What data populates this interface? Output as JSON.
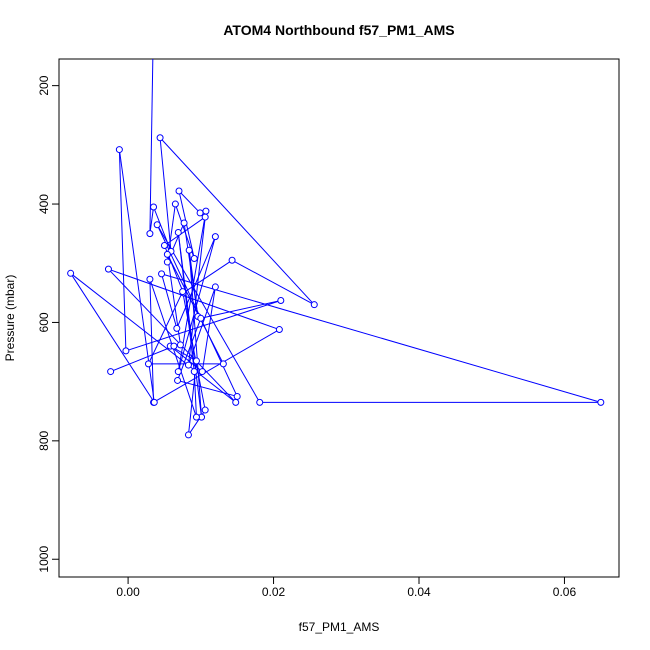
{
  "chart_data": {
    "type": "line",
    "title": "ATOM4 Northbound f57_PM1_AMS",
    "xlabel": "f57_PM1_AMS",
    "ylabel": "Pressure (mbar)",
    "xlim": [
      -0.0095,
      0.0675
    ],
    "ylim": [
      1030,
      155
    ],
    "y_reversed": true,
    "x_ticks": [
      0.0,
      0.02,
      0.04,
      0.06
    ],
    "x_tick_labels": [
      "0.00",
      "0.02",
      "0.04",
      "0.06"
    ],
    "y_ticks": [
      200,
      400,
      600,
      800,
      1000
    ],
    "y_tick_labels": [
      "200",
      "400",
      "600",
      "800",
      "1000"
    ],
    "series": [
      {
        "color": "#0000ff",
        "marker": "open-circle",
        "connect": "lines",
        "points": [
          {
            "x": 0.0034,
            "y": 155,
            "marker": false
          },
          {
            "x": 0.003,
            "y": 450
          },
          {
            "x": 0.0035,
            "y": 405
          },
          {
            "x": 0.0059,
            "y": 480
          },
          {
            "x": 0.0044,
            "y": 288
          },
          {
            "x": 0.0256,
            "y": 570
          },
          {
            "x": 0.0143,
            "y": 495
          },
          {
            "x": 0.0076,
            "y": 550
          },
          {
            "x": 0.005,
            "y": 470
          },
          {
            "x": 0.0106,
            "y": 422
          },
          {
            "x": 0.0099,
            "y": 415
          },
          {
            "x": 0.007,
            "y": 378
          },
          {
            "x": 0.0091,
            "y": 492
          },
          {
            "x": 0.0065,
            "y": 400
          },
          {
            "x": 0.0054,
            "y": 498
          },
          {
            "x": 0.0077,
            "y": 432
          },
          {
            "x": 0.0096,
            "y": 590
          },
          {
            "x": 0.0084,
            "y": 478
          },
          {
            "x": 0.0101,
            "y": 760
          },
          {
            "x": 0.0069,
            "y": 448
          },
          {
            "x": 0.0091,
            "y": 683
          },
          {
            "x": 0.0094,
            "y": 760
          },
          {
            "x": 0.003,
            "y": 527
          },
          {
            "x": 0.0035,
            "y": 735
          },
          {
            "x": 0.0208,
            "y": 612
          },
          {
            "x": -0.0027,
            "y": 510
          },
          {
            "x": 0.0148,
            "y": 735
          },
          {
            "x": -0.0079,
            "y": 517
          },
          {
            "x": 0.0036,
            "y": 735
          },
          {
            "x": -0.0012,
            "y": 308
          },
          {
            "x": -0.0003,
            "y": 648
          },
          {
            "x": 0.021,
            "y": 563
          },
          {
            "x": 0.01,
            "y": 593
          },
          {
            "x": 0.0068,
            "y": 698
          },
          {
            "x": 0.015,
            "y": 725
          },
          {
            "x": 0.004,
            "y": 435
          },
          {
            "x": 0.0181,
            "y": 735
          },
          {
            "x": 0.065,
            "y": 735
          },
          {
            "x": 0.0046,
            "y": 518
          },
          {
            "x": 0.0067,
            "y": 610
          },
          {
            "x": 0.012,
            "y": 455
          },
          {
            "x": 0.0069,
            "y": 683
          },
          {
            "x": 0.0107,
            "y": 412
          },
          {
            "x": 0.0083,
            "y": 672
          },
          {
            "x": 0.012,
            "y": 540
          },
          {
            "x": 0.0102,
            "y": 683
          },
          {
            "x": 0.0058,
            "y": 640
          },
          {
            "x": 0.0094,
            "y": 665
          },
          {
            "x": 0.0083,
            "y": 790
          },
          {
            "x": 0.0106,
            "y": 748
          },
          {
            "x": 0.0075,
            "y": 548
          },
          {
            "x": 0.0028,
            "y": 670
          },
          {
            "x": 0.0131,
            "y": 670
          },
          {
            "x": 0.0054,
            "y": 485
          },
          {
            "x": 0.0072,
            "y": 638
          },
          {
            "x": 0.0063,
            "y": 640
          },
          {
            "x": -0.0024,
            "y": 683
          }
        ]
      }
    ]
  }
}
